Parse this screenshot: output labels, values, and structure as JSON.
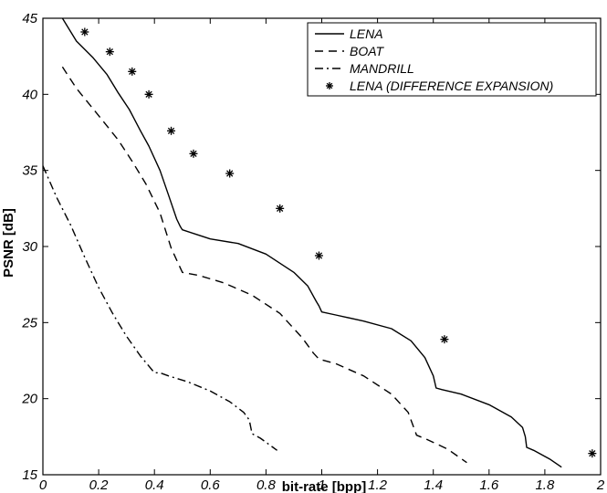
{
  "chart_data": {
    "type": "line",
    "xlabel": "bit-rate  [bpp]",
    "ylabel": "PSNR  [dB]",
    "xlim": [
      0,
      2
    ],
    "ylim": [
      15,
      45
    ],
    "x_ticks": [
      "0",
      "0.2",
      "0.4",
      "0.6",
      "0.8",
      "1",
      "1.2",
      "1.4",
      "1.6",
      "1.8",
      "2"
    ],
    "y_ticks": [
      "15",
      "20",
      "25",
      "30",
      "35",
      "40",
      "45"
    ],
    "legend_position": "top-right",
    "grid": false,
    "series": [
      {
        "name": "LENA",
        "style": "solid",
        "points": [
          [
            0.07,
            45.0
          ],
          [
            0.12,
            43.5
          ],
          [
            0.18,
            42.4
          ],
          [
            0.23,
            41.3
          ],
          [
            0.27,
            40.1
          ],
          [
            0.31,
            39.0
          ],
          [
            0.35,
            37.6
          ],
          [
            0.38,
            36.6
          ],
          [
            0.42,
            35.0
          ],
          [
            0.45,
            33.4
          ],
          [
            0.48,
            31.8
          ],
          [
            0.493,
            31.3
          ],
          [
            0.5,
            31.1
          ],
          [
            0.55,
            30.8
          ],
          [
            0.6,
            30.5
          ],
          [
            0.7,
            30.2
          ],
          [
            0.8,
            29.5
          ],
          [
            0.9,
            28.3
          ],
          [
            0.95,
            27.4
          ],
          [
            0.98,
            26.4
          ],
          [
            0.99,
            26.1
          ],
          [
            1.0,
            25.7
          ],
          [
            1.05,
            25.5
          ],
          [
            1.15,
            25.1
          ],
          [
            1.25,
            24.6
          ],
          [
            1.32,
            23.8
          ],
          [
            1.37,
            22.7
          ],
          [
            1.4,
            21.5
          ],
          [
            1.41,
            20.7
          ],
          [
            1.43,
            20.6
          ],
          [
            1.5,
            20.3
          ],
          [
            1.6,
            19.6
          ],
          [
            1.68,
            18.8
          ],
          [
            1.72,
            18.1
          ],
          [
            1.73,
            17.5
          ],
          [
            1.735,
            16.8
          ],
          [
            1.76,
            16.6
          ],
          [
            1.82,
            16.0
          ],
          [
            1.86,
            15.5
          ]
        ]
      },
      {
        "name": "BOAT",
        "style": "dashed",
        "points": [
          [
            0.07,
            41.8
          ],
          [
            0.12,
            40.4
          ],
          [
            0.2,
            38.6
          ],
          [
            0.27,
            37.0
          ],
          [
            0.32,
            35.6
          ],
          [
            0.37,
            34.1
          ],
          [
            0.42,
            32.2
          ],
          [
            0.46,
            29.9
          ],
          [
            0.49,
            28.7
          ],
          [
            0.5,
            28.3
          ],
          [
            0.56,
            28.1
          ],
          [
            0.65,
            27.6
          ],
          [
            0.75,
            26.8
          ],
          [
            0.85,
            25.6
          ],
          [
            0.93,
            24.0
          ],
          [
            0.97,
            23.0
          ],
          [
            0.99,
            22.6
          ],
          [
            1.05,
            22.3
          ],
          [
            1.15,
            21.5
          ],
          [
            1.25,
            20.3
          ],
          [
            1.31,
            19.1
          ],
          [
            1.33,
            18.1
          ],
          [
            1.34,
            17.6
          ],
          [
            1.38,
            17.3
          ],
          [
            1.45,
            16.7
          ],
          [
            1.52,
            15.8
          ]
        ]
      },
      {
        "name": "MANDRILL",
        "style": "dashdot",
        "points": [
          [
            0.0,
            35.3
          ],
          [
            0.05,
            33.2
          ],
          [
            0.1,
            31.4
          ],
          [
            0.15,
            29.3
          ],
          [
            0.2,
            27.3
          ],
          [
            0.25,
            25.6
          ],
          [
            0.3,
            24.1
          ],
          [
            0.35,
            22.8
          ],
          [
            0.4,
            21.7
          ],
          [
            0.42,
            21.7
          ],
          [
            0.45,
            21.5
          ],
          [
            0.52,
            21.1
          ],
          [
            0.6,
            20.5
          ],
          [
            0.67,
            19.8
          ],
          [
            0.72,
            19.1
          ],
          [
            0.74,
            18.6
          ],
          [
            0.75,
            17.7
          ],
          [
            0.78,
            17.4
          ],
          [
            0.84,
            16.6
          ]
        ]
      },
      {
        "name": "LENA (DIFFERENCE EXPANSION)",
        "style": "markers",
        "marker": "*",
        "points": [
          [
            0.15,
            44.1
          ],
          [
            0.24,
            42.8
          ],
          [
            0.32,
            41.5
          ],
          [
            0.38,
            40.0
          ],
          [
            0.46,
            37.6
          ],
          [
            0.54,
            36.1
          ],
          [
            0.67,
            34.8
          ],
          [
            0.85,
            32.5
          ],
          [
            0.99,
            29.4
          ],
          [
            1.44,
            23.9
          ],
          [
            1.97,
            16.4
          ]
        ]
      }
    ]
  }
}
